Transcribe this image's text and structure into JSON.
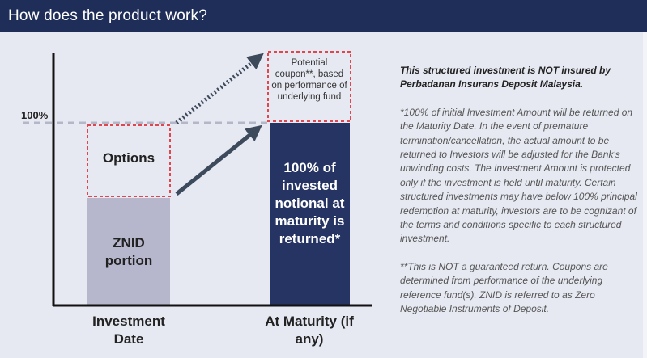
{
  "header": {
    "title": "How does the product work?"
  },
  "diagram": {
    "y_label_100": "100%",
    "options_label": "Options",
    "znid_label": "ZNID portion",
    "coupon_label": "Potential coupon**, based on performance of underlying fund",
    "maturity_bar_label": "100% of invested notional at maturity is returned*",
    "x_labels": [
      "Investment Date",
      "At Maturity (if any)"
    ],
    "colors": {
      "navy": "#253462",
      "znid": "#b6b7cc",
      "dashed_red": "#e0464e",
      "arrow": "#3d4a5c"
    }
  },
  "notes": {
    "insurance": "This structured investment is NOT insured by Perbadanan Insurans Deposit Malaysia.",
    "note1": "*100% of initial Investment Amount will be returned on the Maturity Date. In the event of premature termination/cancellation, the actual amount to be returned to Investors will be adjusted for the Bank's unwinding costs. The Investment Amount is protected only if the investment is held until maturity. Certain structured investments may have below 100% principal redemption at maturity, investors are to be cognizant of the terms and conditions specific to each structured investment.",
    "note2": "**This is NOT a guaranteed return. Coupons are determined from performance of the underlying reference fund(s). ZNID is referred to as Zero Negotiable Instruments of Deposit."
  }
}
